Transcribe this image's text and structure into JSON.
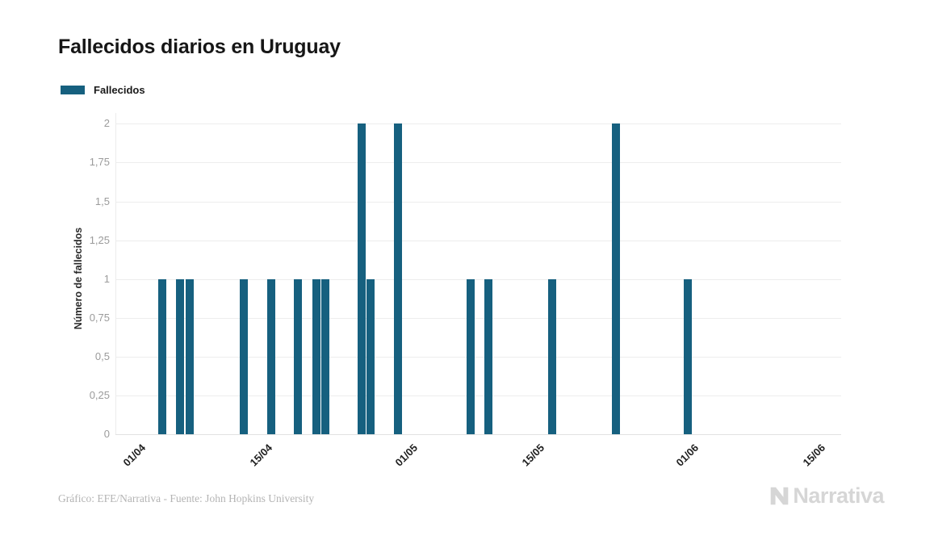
{
  "header": {
    "title": "Fallecidos diarios en Uruguay"
  },
  "legend": {
    "items": [
      {
        "label": "Fallecidos",
        "color": "#16607f"
      }
    ]
  },
  "chart_data": {
    "type": "bar",
    "title": "Fallecidos diarios en Uruguay",
    "xlabel": "",
    "ylabel": "Número de fallecidos",
    "ylim": [
      0,
      2
    ],
    "grid": "horizontal",
    "legend_position": "top-left",
    "bar_color": "#16607f",
    "gridline_color": "#ededed",
    "y_ticks": [
      {
        "label": "2",
        "value": 2
      },
      {
        "label": "1,75",
        "value": 1.75
      },
      {
        "label": "1,5",
        "value": 1.5
      },
      {
        "label": "1,25",
        "value": 1.25
      },
      {
        "label": "1",
        "value": 1
      },
      {
        "label": "0,75",
        "value": 0.75
      },
      {
        "label": "0,5",
        "value": 0.5
      },
      {
        "label": "0,25",
        "value": 0.25
      },
      {
        "label": "0",
        "value": 0
      }
    ],
    "x_ticks": [
      {
        "label": "01/04"
      },
      {
        "label": "15/04"
      },
      {
        "label": "01/05"
      },
      {
        "label": "15/05"
      },
      {
        "label": "01/06"
      },
      {
        "label": "15/06"
      }
    ],
    "series": [
      {
        "name": "Fallecidos",
        "color": "#16607f",
        "points": [
          {
            "date": "03/04",
            "value": 1
          },
          {
            "date": "05/04",
            "value": 1
          },
          {
            "date": "06/04",
            "value": 1
          },
          {
            "date": "12/04",
            "value": 1
          },
          {
            "date": "15/04",
            "value": 1
          },
          {
            "date": "18/04",
            "value": 1
          },
          {
            "date": "20/04",
            "value": 1
          },
          {
            "date": "21/04",
            "value": 1
          },
          {
            "date": "25/04",
            "value": 2
          },
          {
            "date": "26/04",
            "value": 1
          },
          {
            "date": "29/04",
            "value": 2
          },
          {
            "date": "07/05",
            "value": 1
          },
          {
            "date": "09/05",
            "value": 1
          },
          {
            "date": "16/05",
            "value": 1
          },
          {
            "date": "23/05",
            "value": 2
          },
          {
            "date": "31/05",
            "value": 1
          }
        ]
      }
    ]
  },
  "footer": {
    "credit": "Gráfico: EFE/Narrativa - Fuente: John Hopkins University",
    "brand": "Narrativa"
  }
}
